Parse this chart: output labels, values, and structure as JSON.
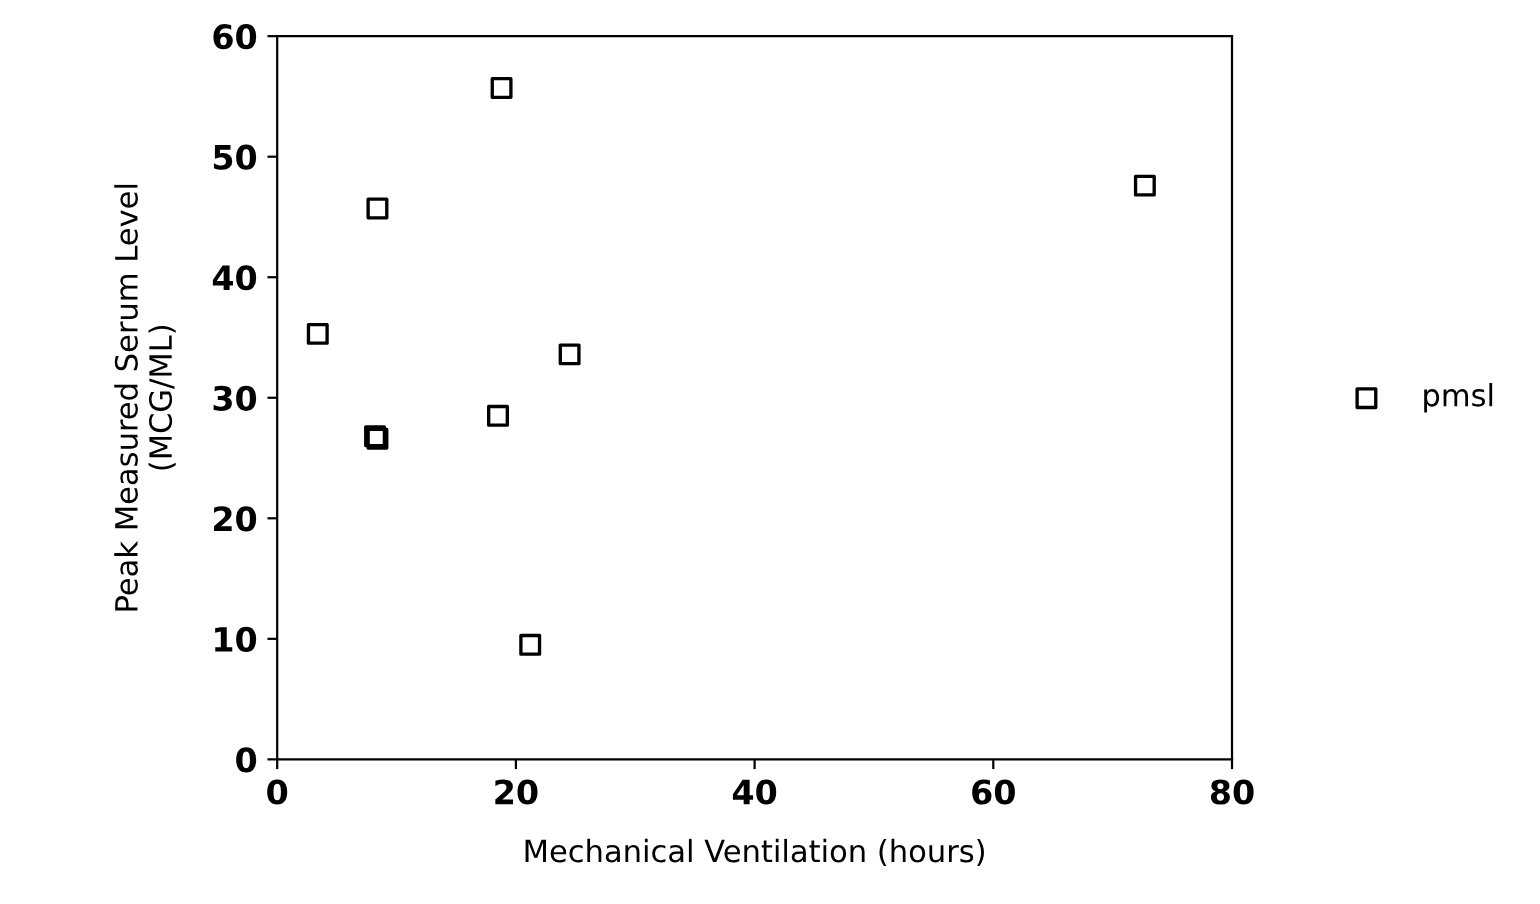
{
  "chart_data": {
    "type": "scatter",
    "xlabel": "Mechanical Ventilation (hours)",
    "ylabel": "Peak Measured Serum Level\n(MCG/ML)",
    "xlim": [
      0,
      80
    ],
    "xticks": [
      0,
      20,
      40,
      60,
      80
    ],
    "ylim": [
      0,
      60
    ],
    "yticks": [
      0,
      10,
      20,
      30,
      40,
      50,
      60
    ],
    "marker": "square",
    "legend": "right",
    "grid": false,
    "series": [
      {
        "name": "pmsl",
        "color": "#000000",
        "x": [
          3.4,
          8.4,
          18.8,
          8.2,
          8.4,
          18.5,
          24.5,
          21.2,
          72.7
        ],
        "values": [
          35.3,
          45.7,
          55.7,
          26.8,
          26.6,
          28.5,
          33.6,
          9.5,
          47.6
        ]
      }
    ]
  }
}
